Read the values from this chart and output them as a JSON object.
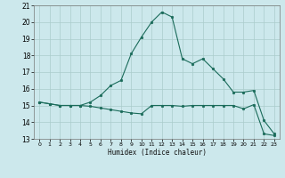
{
  "title": "",
  "xlabel": "Humidex (Indice chaleur)",
  "x": [
    0,
    1,
    2,
    3,
    4,
    5,
    6,
    7,
    8,
    9,
    10,
    11,
    12,
    13,
    14,
    15,
    16,
    17,
    18,
    19,
    20,
    21,
    22,
    23
  ],
  "line1": [
    15.2,
    15.1,
    15.0,
    15.0,
    15.0,
    15.2,
    15.6,
    16.2,
    16.5,
    18.1,
    19.1,
    20.0,
    20.6,
    20.3,
    17.8,
    17.5,
    17.8,
    17.2,
    16.6,
    15.8,
    15.8,
    15.9,
    14.1,
    13.3
  ],
  "line2": [
    15.2,
    15.1,
    15.0,
    15.0,
    15.0,
    14.95,
    14.85,
    14.75,
    14.65,
    14.55,
    14.5,
    15.0,
    15.0,
    15.0,
    14.95,
    15.0,
    15.0,
    15.0,
    15.0,
    15.0,
    14.8,
    15.05,
    13.3,
    13.2
  ],
  "line_color": "#1a6b5a",
  "bg_color": "#cce8ec",
  "grid_color": "#aacccc",
  "ylim": [
    13,
    21
  ],
  "yticks": [
    13,
    14,
    15,
    16,
    17,
    18,
    19,
    20,
    21
  ],
  "xlim": [
    -0.5,
    23.5
  ],
  "xticks": [
    0,
    1,
    2,
    3,
    4,
    5,
    6,
    7,
    8,
    9,
    10,
    11,
    12,
    13,
    14,
    15,
    16,
    17,
    18,
    19,
    20,
    21,
    22,
    23
  ]
}
